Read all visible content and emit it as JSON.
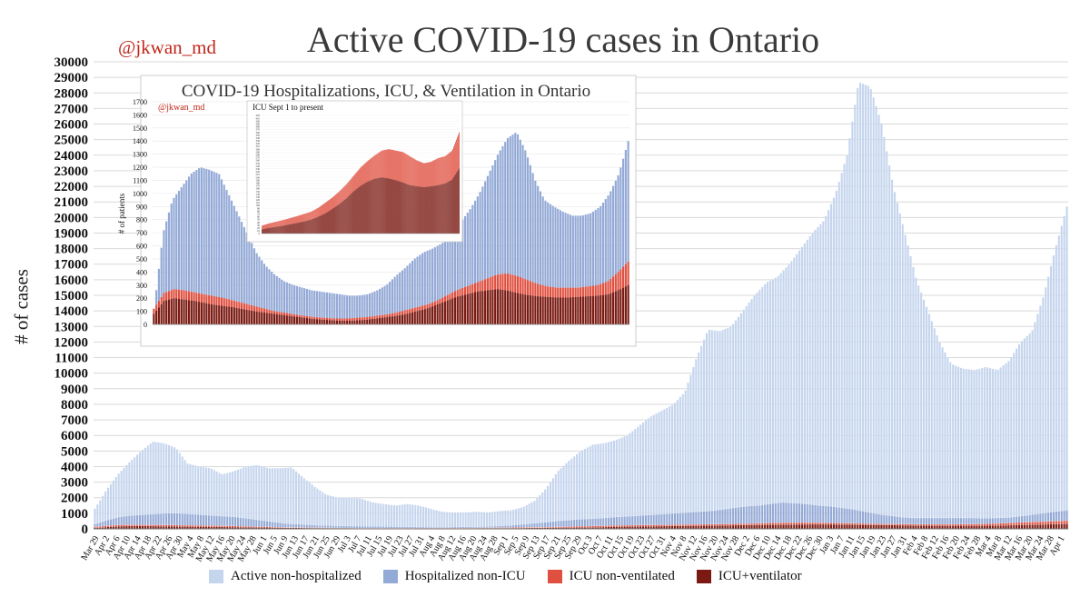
{
  "header": {
    "title": "Active COVID-19 cases in Ontario",
    "handle": "@jkwan_md"
  },
  "colors": {
    "active": "#c5d5ee",
    "hosp": "#93a9d6",
    "icu": "#e05040",
    "vent": "#7a1a12",
    "grid": "#d9d9d9"
  },
  "inset": {
    "title": "COVID-19 Hospitalizations, ICU, & Ventilation in Ontario",
    "handle": "@jkwan_md",
    "ylabel": "# of patients",
    "subinset_title": "ICU Sept 1 to present"
  },
  "chart_data": [
    {
      "type": "bar",
      "stacked": true,
      "title": "Active COVID-19 cases in Ontario",
      "ylabel": "# of cases",
      "xlabel": "",
      "ylim": [
        0,
        30000
      ],
      "y_ticks": [
        0,
        1000,
        2000,
        3000,
        4000,
        5000,
        6000,
        7000,
        8000,
        9000,
        10000,
        11000,
        12000,
        13000,
        14000,
        15000,
        16000,
        17000,
        18000,
        19000,
        20000,
        21000,
        22000,
        23000,
        24000,
        25000,
        26000,
        27000,
        28000,
        29000,
        30000
      ],
      "grid": true,
      "legend_position": "bottom",
      "x_tick_labels": [
        "Mar 29",
        "Apr 2",
        "Apr 6",
        "Apr 10",
        "Apr 14",
        "Apr 18",
        "Apr 22",
        "Apr 26",
        "Apr 30",
        "May 4",
        "May 8",
        "May 12",
        "May 16",
        "May 20",
        "May 24",
        "May 28",
        "Jun 1",
        "Jun 5",
        "Jun 9",
        "Jun 13",
        "Jun 17",
        "Jun 21",
        "Jun 25",
        "Jun 29",
        "Jul 3",
        "Jul 7",
        "Jul 11",
        "Jul 15",
        "Jul 19",
        "Jul 23",
        "Jul 27",
        "Jul 31",
        "Aug 4",
        "Aug 8",
        "Aug 12",
        "Aug 16",
        "Aug 20",
        "Aug 24",
        "Aug 28",
        "Sep 1",
        "Sep 5",
        "Sep 9",
        "Sep 13",
        "Sep 17",
        "Sep 21",
        "Sep 25",
        "Sep 29",
        "Oct 3",
        "Oct 7",
        "Oct 11",
        "Oct 15",
        "Oct 19",
        "Oct 23",
        "Oct 27",
        "Oct 31",
        "Nov 4",
        "Nov 8",
        "Nov 12",
        "Nov 16",
        "Nov 20",
        "Nov 24",
        "Nov 28",
        "Dec 2",
        "Dec 6",
        "Dec 10",
        "Dec 14",
        "Dec 18",
        "Dec 22",
        "Dec 26",
        "Dec 30",
        "Jan 3",
        "Jan 7",
        "Jan 11",
        "Jan 15",
        "Jan 19",
        "Jan 23",
        "Jan 27",
        "Jan 31",
        "Feb 4",
        "Feb 8",
        "Feb 12",
        "Feb 16",
        "Feb 20",
        "Feb 24",
        "Feb 28",
        "Mar 4",
        "Mar 8",
        "Mar 12",
        "Mar 16",
        "Mar 20",
        "Mar 24",
        "Mar 28",
        "Apr 1"
      ],
      "series": [
        {
          "name": "Active non-hospitalized",
          "total_values": [
            1300,
            2500,
            3500,
            4300,
            5000,
            5600,
            5500,
            5200,
            4200,
            4000,
            3900,
            3500,
            3700,
            4000,
            4100,
            3900,
            3900,
            3950,
            3300,
            2700,
            2200,
            2000,
            2000,
            1950,
            1700,
            1600,
            1500,
            1600,
            1500,
            1300,
            1100,
            1050,
            1050,
            1100,
            1050,
            1150,
            1200,
            1400,
            1800,
            2600,
            3700,
            4400,
            5000,
            5400,
            5500,
            5700,
            6000,
            6600,
            7200,
            7600,
            8000,
            8800,
            11000,
            12800,
            12700,
            13000,
            14000,
            15000,
            15800,
            16200,
            17000,
            18000,
            19000,
            19800,
            21500,
            24000,
            28700,
            28400,
            26000,
            22000,
            19000,
            16000,
            14000,
            12000,
            10600,
            10300,
            10200,
            10400,
            10200,
            10800,
            12000,
            12700,
            15000,
            18000,
            20700
          ]
        },
        {
          "name": "Hospitalized non-ICU",
          "total_values": [
            300,
            550,
            750,
            850,
            900,
            950,
            1000,
            1000,
            950,
            900,
            850,
            800,
            750,
            650,
            550,
            450,
            350,
            300,
            260,
            220,
            200,
            180,
            170,
            160,
            150,
            140,
            130,
            120,
            110,
            100,
            110,
            120,
            130,
            150,
            180,
            220,
            280,
            350,
            420,
            500,
            560,
            620,
            650,
            700,
            760,
            800,
            850,
            900,
            950,
            1000,
            1050,
            1100,
            1150,
            1250,
            1350,
            1450,
            1500,
            1600,
            1700,
            1650,
            1600,
            1500,
            1450,
            1350,
            1250,
            1100,
            950,
            850,
            750,
            700,
            700,
            700,
            700,
            700,
            700,
            680,
            700,
            720,
            800,
            900,
            1000,
            1100,
            1200
          ]
        },
        {
          "name": "ICU non-ventilated",
          "total_values": [
            120,
            200,
            250,
            260,
            260,
            250,
            240,
            230,
            220,
            210,
            200,
            180,
            160,
            140,
            120,
            100,
            90,
            80,
            70,
            60,
            55,
            50,
            50,
            45,
            45,
            40,
            40,
            40,
            45,
            50,
            55,
            60,
            70,
            80,
            90,
            100,
            110,
            120,
            140,
            160,
            180,
            200,
            220,
            230,
            240,
            250,
            260,
            270,
            280,
            290,
            300,
            310,
            330,
            350,
            370,
            390,
            400,
            400,
            390,
            380,
            370,
            350,
            330,
            320,
            310,
            300,
            290,
            290,
            290,
            290,
            300,
            310,
            330,
            360,
            400,
            430,
            460,
            490,
            520
          ]
        },
        {
          "name": "ICU+ventilator",
          "total_values": [
            60,
            120,
            170,
            180,
            180,
            170,
            160,
            150,
            140,
            130,
            120,
            110,
            100,
            90,
            80,
            70,
            60,
            50,
            45,
            40,
            35,
            30,
            30,
            28,
            28,
            25,
            25,
            25,
            28,
            30,
            35,
            40,
            45,
            50,
            60,
            65,
            70,
            80,
            90,
            100,
            120,
            140,
            150,
            160,
            170,
            180,
            190,
            200,
            210,
            220,
            230,
            240,
            250,
            260,
            270,
            280,
            290,
            290,
            280,
            270,
            260,
            250,
            240,
            230,
            220,
            210,
            200,
            200,
            200,
            200,
            210,
            220,
            240,
            260,
            280,
            300,
            320
          ]
        }
      ]
    },
    {
      "type": "bar",
      "stacked": true,
      "title": "COVID-19 Hospitalizations, ICU, & Ventilation in Ontario",
      "ylabel": "# of patients",
      "ylim": [
        0,
        1700
      ],
      "y_ticks": [
        0,
        100,
        200,
        300,
        400,
        500,
        600,
        700,
        800,
        900,
        1000,
        1100,
        1200,
        1300,
        1400,
        1500,
        1600,
        1700
      ],
      "series": [
        {
          "name": "Hospitalized non-ICU",
          "total_values": [
            100,
            700,
            950,
            1050,
            1150,
            1200,
            1180,
            1150,
            1000,
            850,
            700,
            550,
            450,
            380,
            330,
            300,
            280,
            260,
            250,
            240,
            230,
            220,
            220,
            230,
            260,
            300,
            370,
            430,
            500,
            550,
            580,
            620,
            700,
            780,
            880,
            1000,
            1150,
            1300,
            1420,
            1470,
            1320,
            1100,
            950,
            900,
            860,
            830,
            830,
            850,
            900,
            1000,
            1150,
            1400
          ]
        },
        {
          "name": "ICU non-ventilated",
          "total_values": [
            120,
            240,
            270,
            260,
            245,
            230,
            215,
            200,
            180,
            160,
            140,
            120,
            100,
            90,
            75,
            65,
            55,
            50,
            45,
            45,
            50,
            55,
            65,
            75,
            90,
            110,
            130,
            150,
            180,
            220,
            260,
            290,
            320,
            350,
            380,
            390,
            370,
            340,
            310,
            290,
            280,
            280,
            280,
            290,
            300,
            330,
            400,
            480
          ]
        },
        {
          "name": "ICU+ventilator",
          "total_values": [
            80,
            180,
            200,
            190,
            180,
            165,
            150,
            140,
            130,
            115,
            100,
            90,
            80,
            70,
            60,
            50,
            40,
            35,
            30,
            28,
            30,
            35,
            45,
            55,
            65,
            80,
            100,
            120,
            150,
            180,
            210,
            230,
            250,
            260,
            270,
            260,
            240,
            225,
            215,
            210,
            205,
            205,
            210,
            215,
            220,
            230,
            260,
            300
          ]
        }
      ]
    },
    {
      "type": "bar",
      "stacked": true,
      "title": "ICU Sept 1 to present",
      "ylim": [
        0,
        420
      ],
      "y_ticks": [
        0,
        10,
        20,
        30,
        40,
        50,
        60,
        70,
        80,
        90,
        100,
        110,
        120,
        130,
        140,
        150,
        160,
        170,
        180,
        190,
        200,
        210,
        220,
        230,
        240,
        250,
        260,
        270,
        280,
        290,
        300,
        310,
        320,
        330,
        340,
        350,
        360,
        370,
        380,
        390,
        400,
        410,
        420
      ],
      "series": [
        {
          "name": "ICU non-ventilated",
          "total_values": [
            28,
            36,
            42,
            48,
            55,
            62,
            70,
            78,
            92,
            110,
            128,
            150,
            175,
            205,
            235,
            258,
            278,
            295,
            300,
            295,
            290,
            275,
            260,
            250,
            255,
            268,
            275,
            295,
            360
          ]
        },
        {
          "name": "ICU+ventilator",
          "total_values": [
            15,
            20,
            24,
            28,
            33,
            38,
            43,
            50,
            60,
            72,
            88,
            105,
            125,
            150,
            170,
            185,
            195,
            200,
            196,
            190,
            182,
            172,
            168,
            165,
            168,
            172,
            178,
            192,
            232
          ]
        }
      ]
    }
  ]
}
